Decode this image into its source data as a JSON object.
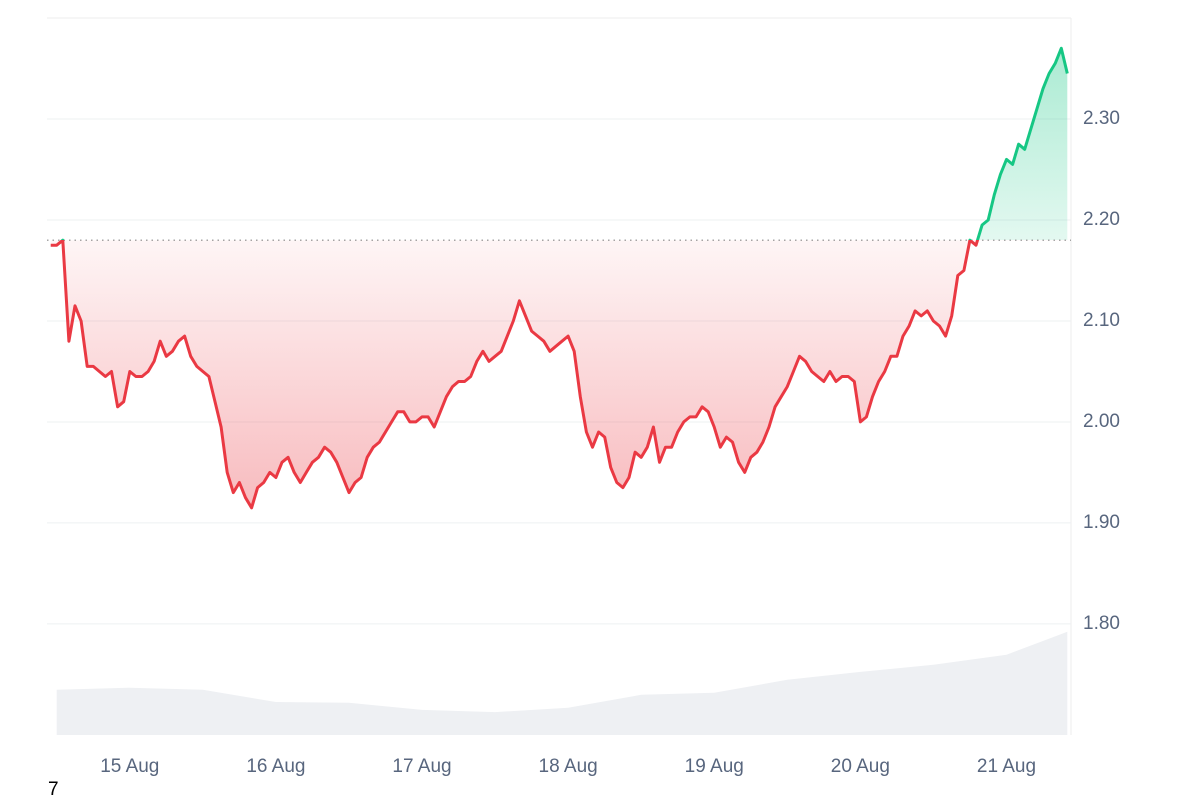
{
  "chart_data": {
    "type": "line",
    "corner_label": "7",
    "baseline": 2.18,
    "grid": true,
    "colors": {
      "up": "#16c784",
      "down": "#ea3943",
      "volume": "#eef0f3"
    },
    "xlim": [
      -13.6,
      154.6
    ],
    "xticks": [
      {
        "value": 0,
        "label": "15 Aug"
      },
      {
        "value": 24,
        "label": "16 Aug"
      },
      {
        "value": 48,
        "label": "17 Aug"
      },
      {
        "value": 72,
        "label": "18 Aug"
      },
      {
        "value": 96,
        "label": "19 Aug"
      },
      {
        "value": 120,
        "label": "20 Aug"
      },
      {
        "value": 144,
        "label": "21 Aug"
      }
    ],
    "ylim": [
      1.69,
      2.4
    ],
    "yticks": [
      {
        "value": 1.8,
        "label": "1.80"
      },
      {
        "value": 1.9,
        "label": "1.90"
      },
      {
        "value": 2.0,
        "label": "2.00"
      },
      {
        "value": 2.1,
        "label": "2.10"
      },
      {
        "value": 2.2,
        "label": "2.20"
      },
      {
        "value": 2.3,
        "label": "2.30"
      }
    ],
    "y2lim": [
      0,
      100
    ],
    "x": [
      -13,
      -12,
      -11,
      -10,
      -9,
      -8,
      -7,
      -6,
      -5,
      -4,
      -3,
      -2,
      -1,
      0,
      1,
      2,
      3,
      4,
      5,
      6,
      7,
      8,
      9,
      10,
      11,
      12,
      13,
      14,
      15,
      16,
      17,
      18,
      19,
      20,
      21,
      22,
      23,
      24,
      25,
      26,
      27,
      28,
      29,
      30,
      31,
      32,
      33,
      34,
      35,
      36,
      37,
      38,
      39,
      40,
      41,
      42,
      43,
      44,
      45,
      46,
      47,
      48,
      49,
      50,
      51,
      52,
      53,
      54,
      55,
      56,
      57,
      58,
      59,
      60,
      61,
      62,
      63,
      64,
      65,
      66,
      67,
      68,
      69,
      70,
      71,
      72,
      73,
      74,
      75,
      76,
      77,
      78,
      79,
      80,
      81,
      82,
      83,
      84,
      85,
      86,
      87,
      88,
      89,
      90,
      91,
      92,
      93,
      94,
      95,
      96,
      97,
      98,
      99,
      100,
      101,
      102,
      103,
      104,
      105,
      106,
      107,
      108,
      109,
      110,
      111,
      112,
      113,
      114,
      115,
      116,
      117,
      118,
      119,
      120,
      121,
      122,
      123,
      124,
      125,
      126,
      127,
      128,
      129,
      130,
      131,
      132,
      133,
      134,
      135,
      136,
      137,
      138,
      139,
      140,
      141,
      142,
      143,
      144,
      145,
      146,
      147,
      148,
      149,
      150,
      151,
      152,
      153,
      154
    ],
    "series": [
      {
        "name": "Price",
        "values": [
          2.175,
          2.175,
          2.18,
          2.08,
          2.115,
          2.1,
          2.055,
          2.055,
          2.05,
          2.045,
          2.05,
          2.015,
          2.02,
          2.05,
          2.045,
          2.045,
          2.05,
          2.06,
          2.08,
          2.065,
          2.07,
          2.08,
          2.085,
          2.065,
          2.055,
          2.05,
          2.045,
          2.02,
          1.995,
          1.95,
          1.93,
          1.94,
          1.925,
          1.915,
          1.935,
          1.94,
          1.95,
          1.945,
          1.96,
          1.965,
          1.95,
          1.94,
          1.95,
          1.96,
          1.965,
          1.975,
          1.97,
          1.96,
          1.945,
          1.93,
          1.94,
          1.945,
          1.965,
          1.975,
          1.98,
          1.99,
          2.0,
          2.01,
          2.01,
          2.0,
          2.0,
          2.005,
          2.005,
          1.995,
          2.01,
          2.025,
          2.035,
          2.04,
          2.04,
          2.045,
          2.06,
          2.07,
          2.06,
          2.065,
          2.07,
          2.085,
          2.1,
          2.12,
          2.105,
          2.09,
          2.085,
          2.08,
          2.07,
          2.075,
          2.08,
          2.085,
          2.07,
          2.025,
          1.99,
          1.975,
          1.99,
          1.985,
          1.955,
          1.94,
          1.935,
          1.945,
          1.97,
          1.965,
          1.975,
          1.995,
          1.96,
          1.975,
          1.975,
          1.99,
          2.0,
          2.005,
          2.005,
          2.015,
          2.01,
          1.995,
          1.975,
          1.985,
          1.98,
          1.96,
          1.95,
          1.965,
          1.97,
          1.98,
          1.995,
          2.015,
          2.025,
          2.035,
          2.05,
          2.065,
          2.06,
          2.05,
          2.045,
          2.04,
          2.05,
          2.04,
          2.045,
          2.045,
          2.04,
          2.0,
          2.005,
          2.025,
          2.04,
          2.05,
          2.065,
          2.065,
          2.085,
          2.095,
          2.11,
          2.105,
          2.11,
          2.1,
          2.095,
          2.085,
          2.105,
          2.145,
          2.15,
          2.18,
          2.175,
          2.195,
          2.2,
          2.225,
          2.245,
          2.26,
          2.255,
          2.275,
          2.27,
          2.29,
          2.31,
          2.33,
          2.345,
          2.355,
          2.37,
          2.345
        ]
      },
      {
        "name": "Volume",
        "axis": "y2",
        "x": [
          -12,
          0,
          12,
          24,
          36,
          48,
          60,
          72,
          84,
          96,
          108,
          120,
          132,
          144,
          154
        ],
        "values": [
          6.3,
          6.6,
          6.3,
          4.6,
          4.5,
          3.5,
          3.2,
          3.8,
          5.6,
          5.9,
          7.7,
          8.8,
          9.8,
          11.2,
          14.4
        ]
      }
    ]
  }
}
